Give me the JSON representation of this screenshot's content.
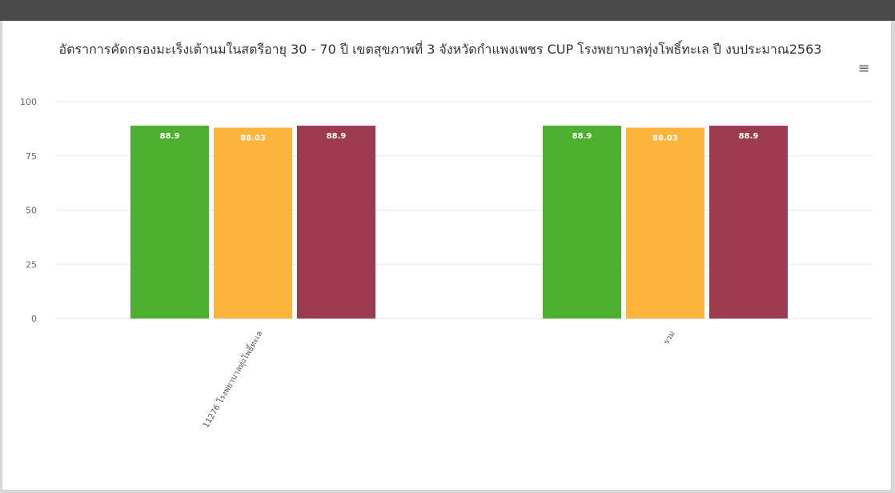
{
  "menu": {
    "icon": "hamburger-menu-icon",
    "glyph": "≡"
  },
  "colors": {
    "top_strip": "#4a4a4a",
    "background": "#ffffff",
    "grid": "#e6e6e6"
  },
  "chart_data": {
    "type": "bar",
    "title": "อัตราการคัดกรองมะเร็งเต้านมในสตรีอายุ 30 - 70 ปี เขตสุขภาพที่ 3 จังหวัดกำแพงเพชร CUP โรงพยาบาลทุ่งโพธิ์ทะเล ปี งบประมาณ2563",
    "categories": [
      "11276 โรงพยาบาลทุ่งโพธิ์ทะเล",
      "รวม"
    ],
    "series": [
      {
        "color": "#4caf30",
        "values": [
          88.9,
          88.9
        ],
        "labels": [
          "88.9",
          "88.9"
        ]
      },
      {
        "color": "#fbb53c",
        "values": [
          88.03,
          88.03
        ],
        "labels": [
          "88.03",
          "88.03"
        ]
      },
      {
        "color": "#9c3a4f",
        "values": [
          88.9,
          88.9
        ],
        "labels": [
          "88.9",
          "88.9"
        ]
      }
    ],
    "y_ticks": [
      "0",
      "25",
      "50",
      "75",
      "100"
    ],
    "ylim": [
      0,
      100
    ],
    "xlabel": "",
    "ylabel": "",
    "grid": true,
    "legend": "none"
  }
}
